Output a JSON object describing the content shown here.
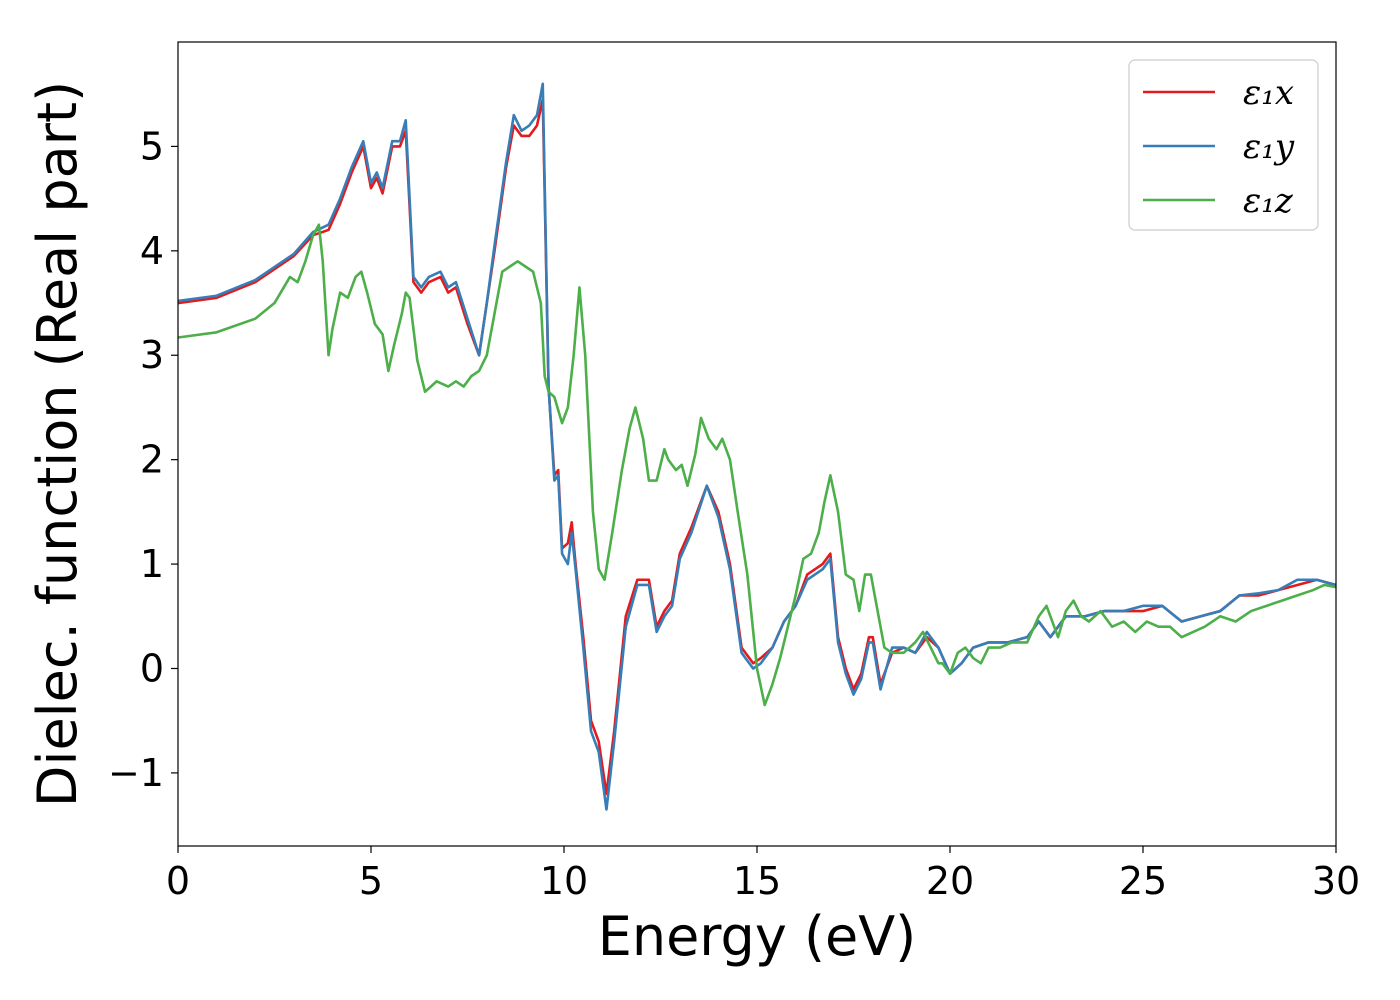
{
  "chart_data": {
    "type": "line",
    "title": "",
    "xlabel": "Energy (eV)",
    "ylabel": "Dielec. function (Real part)",
    "xlim": [
      0,
      30
    ],
    "ylim": [
      -1.7,
      6.0
    ],
    "xticks": [
      0,
      5,
      10,
      15,
      20,
      25,
      30
    ],
    "yticks": [
      -1,
      0,
      1,
      2,
      3,
      4,
      5
    ],
    "xtick_labels": [
      "0",
      "5",
      "10",
      "15",
      "20",
      "25",
      "30"
    ],
    "ytick_labels": [
      "−1",
      "0",
      "1",
      "2",
      "3",
      "4",
      "5"
    ],
    "grid": false,
    "legend_position": "top-right",
    "series": [
      {
        "name": "ε₁x",
        "color": "#e41a1c",
        "x": [
          0,
          1,
          2,
          3,
          3.5,
          3.9,
          4.2,
          4.5,
          4.8,
          5.0,
          5.15,
          5.3,
          5.55,
          5.75,
          5.9,
          6.1,
          6.3,
          6.5,
          6.8,
          7.0,
          7.2,
          7.5,
          7.8,
          8.0,
          8.2,
          8.5,
          8.7,
          8.9,
          9.1,
          9.3,
          9.45,
          9.6,
          9.75,
          9.85,
          9.95,
          10.1,
          10.2,
          10.3,
          10.5,
          10.7,
          10.9,
          11.1,
          11.3,
          11.6,
          11.9,
          12.2,
          12.4,
          12.6,
          12.8,
          13.0,
          13.3,
          13.7,
          14.0,
          14.3,
          14.6,
          14.9,
          15.1,
          15.4,
          15.7,
          16.0,
          16.3,
          16.7,
          16.9,
          17.1,
          17.3,
          17.5,
          17.7,
          17.9,
          18.0,
          18.2,
          18.5,
          18.8,
          19.1,
          19.4,
          19.7,
          20.0,
          20.3,
          20.6,
          21.0,
          21.5,
          22.0,
          22.3,
          22.6,
          23.0,
          23.5,
          24.0,
          24.5,
          25.0,
          25.5,
          26.0,
          26.5,
          27.0,
          27.5,
          28.0,
          28.5,
          29.0,
          29.5,
          30.0
        ],
        "y": [
          3.5,
          3.55,
          3.7,
          3.95,
          4.15,
          4.2,
          4.45,
          4.75,
          5.0,
          4.6,
          4.7,
          4.55,
          5.0,
          5.0,
          5.15,
          3.7,
          3.6,
          3.7,
          3.75,
          3.6,
          3.65,
          3.3,
          3.0,
          3.5,
          4.0,
          4.8,
          5.2,
          5.1,
          5.1,
          5.2,
          5.45,
          2.7,
          1.85,
          1.9,
          1.15,
          1.2,
          1.4,
          1.0,
          0.3,
          -0.5,
          -0.7,
          -1.2,
          -0.6,
          0.5,
          0.85,
          0.85,
          0.4,
          0.55,
          0.65,
          1.1,
          1.35,
          1.75,
          1.5,
          1.0,
          0.2,
          0.05,
          0.1,
          0.2,
          0.45,
          0.6,
          0.9,
          1.0,
          1.1,
          0.3,
          0.0,
          -0.2,
          -0.05,
          0.3,
          0.3,
          -0.15,
          0.15,
          0.2,
          0.15,
          0.3,
          0.2,
          -0.05,
          0.05,
          0.2,
          0.25,
          0.25,
          0.3,
          0.45,
          0.3,
          0.5,
          0.5,
          0.55,
          0.55,
          0.55,
          0.6,
          0.45,
          0.5,
          0.55,
          0.7,
          0.7,
          0.75,
          0.8,
          0.85,
          0.8
        ]
      },
      {
        "name": "ε₁y",
        "color": "#377eb8",
        "x": [
          0,
          1,
          2,
          3,
          3.5,
          3.9,
          4.2,
          4.5,
          4.8,
          5.0,
          5.15,
          5.3,
          5.55,
          5.75,
          5.9,
          6.1,
          6.3,
          6.5,
          6.8,
          7.0,
          7.2,
          7.5,
          7.8,
          8.0,
          8.2,
          8.5,
          8.7,
          8.9,
          9.1,
          9.3,
          9.45,
          9.6,
          9.75,
          9.85,
          9.95,
          10.1,
          10.2,
          10.3,
          10.5,
          10.7,
          10.9,
          11.1,
          11.3,
          11.6,
          11.9,
          12.2,
          12.4,
          12.6,
          12.8,
          13.0,
          13.3,
          13.7,
          14.0,
          14.3,
          14.6,
          14.9,
          15.1,
          15.4,
          15.7,
          16.0,
          16.3,
          16.7,
          16.9,
          17.1,
          17.3,
          17.5,
          17.7,
          17.9,
          18.0,
          18.2,
          18.5,
          18.8,
          19.1,
          19.4,
          19.7,
          20.0,
          20.3,
          20.6,
          21.0,
          21.5,
          22.0,
          22.3,
          22.6,
          23.0,
          23.5,
          24.0,
          24.5,
          25.0,
          25.5,
          26.0,
          26.5,
          27.0,
          27.5,
          28.0,
          28.5,
          29.0,
          29.5,
          30.0
        ],
        "y": [
          3.52,
          3.57,
          3.72,
          3.97,
          4.18,
          4.25,
          4.5,
          4.8,
          5.05,
          4.65,
          4.75,
          4.6,
          5.05,
          5.05,
          5.25,
          3.75,
          3.65,
          3.75,
          3.8,
          3.65,
          3.7,
          3.35,
          3.0,
          3.5,
          4.05,
          4.85,
          5.3,
          5.15,
          5.2,
          5.3,
          5.6,
          2.7,
          1.8,
          1.85,
          1.1,
          1.0,
          1.3,
          0.95,
          0.2,
          -0.6,
          -0.8,
          -1.35,
          -0.7,
          0.4,
          0.8,
          0.8,
          0.35,
          0.5,
          0.6,
          1.05,
          1.3,
          1.75,
          1.45,
          0.95,
          0.15,
          0.0,
          0.05,
          0.2,
          0.45,
          0.6,
          0.85,
          0.95,
          1.05,
          0.25,
          -0.05,
          -0.25,
          -0.1,
          0.25,
          0.25,
          -0.2,
          0.2,
          0.2,
          0.15,
          0.35,
          0.2,
          -0.05,
          0.05,
          0.2,
          0.25,
          0.25,
          0.3,
          0.45,
          0.3,
          0.5,
          0.5,
          0.55,
          0.55,
          0.6,
          0.6,
          0.45,
          0.5,
          0.55,
          0.7,
          0.72,
          0.75,
          0.85,
          0.85,
          0.8
        ]
      },
      {
        "name": "ε₁z",
        "color": "#4daf4a",
        "x": [
          0,
          1,
          2,
          2.5,
          2.9,
          3.1,
          3.3,
          3.5,
          3.65,
          3.75,
          3.9,
          4.0,
          4.2,
          4.4,
          4.6,
          4.75,
          4.9,
          5.1,
          5.3,
          5.45,
          5.6,
          5.8,
          5.9,
          6.0,
          6.2,
          6.4,
          6.7,
          7.0,
          7.2,
          7.4,
          7.6,
          7.8,
          8.0,
          8.2,
          8.4,
          8.6,
          8.8,
          9.0,
          9.2,
          9.4,
          9.5,
          9.6,
          9.75,
          9.95,
          10.1,
          10.25,
          10.4,
          10.55,
          10.75,
          10.9,
          11.05,
          11.25,
          11.5,
          11.7,
          11.85,
          12.05,
          12.2,
          12.4,
          12.6,
          12.7,
          12.9,
          13.05,
          13.2,
          13.4,
          13.55,
          13.75,
          13.95,
          14.1,
          14.3,
          14.5,
          14.75,
          15.0,
          15.2,
          15.4,
          15.6,
          15.8,
          16.0,
          16.2,
          16.4,
          16.6,
          16.75,
          16.9,
          17.1,
          17.3,
          17.5,
          17.65,
          17.8,
          17.95,
          18.1,
          18.3,
          18.5,
          18.8,
          19.1,
          19.3,
          19.5,
          19.7,
          19.8,
          20.0,
          20.2,
          20.4,
          20.6,
          20.8,
          21.0,
          21.3,
          21.6,
          22.0,
          22.3,
          22.5,
          22.8,
          23.0,
          23.2,
          23.4,
          23.6,
          23.9,
          24.2,
          24.5,
          24.8,
          25.1,
          25.4,
          25.7,
          26.0,
          26.3,
          26.6,
          27.0,
          27.4,
          27.8,
          28.2,
          28.6,
          29.0,
          29.4,
          29.7,
          30.0
        ],
        "y": [
          3.17,
          3.22,
          3.35,
          3.5,
          3.75,
          3.7,
          3.9,
          4.15,
          4.25,
          3.9,
          3.0,
          3.25,
          3.6,
          3.55,
          3.75,
          3.8,
          3.6,
          3.3,
          3.2,
          2.85,
          3.1,
          3.4,
          3.6,
          3.55,
          2.95,
          2.65,
          2.75,
          2.7,
          2.75,
          2.7,
          2.8,
          2.85,
          3.0,
          3.4,
          3.8,
          3.85,
          3.9,
          3.85,
          3.8,
          3.5,
          2.8,
          2.65,
          2.6,
          2.35,
          2.5,
          3.0,
          3.65,
          3.0,
          1.5,
          0.95,
          0.85,
          1.3,
          1.9,
          2.3,
          2.5,
          2.2,
          1.8,
          1.8,
          2.1,
          2.0,
          1.9,
          1.95,
          1.75,
          2.05,
          2.4,
          2.2,
          2.1,
          2.2,
          2.0,
          1.5,
          0.9,
          0.0,
          -0.35,
          -0.15,
          0.1,
          0.4,
          0.7,
          1.05,
          1.1,
          1.3,
          1.6,
          1.85,
          1.5,
          0.9,
          0.85,
          0.55,
          0.9,
          0.9,
          0.6,
          0.2,
          0.15,
          0.15,
          0.25,
          0.35,
          0.2,
          0.05,
          0.05,
          -0.05,
          0.15,
          0.2,
          0.1,
          0.05,
          0.2,
          0.2,
          0.25,
          0.25,
          0.5,
          0.6,
          0.3,
          0.55,
          0.65,
          0.5,
          0.45,
          0.55,
          0.4,
          0.45,
          0.35,
          0.45,
          0.4,
          0.4,
          0.3,
          0.35,
          0.4,
          0.5,
          0.45,
          0.55,
          0.6,
          0.65,
          0.7,
          0.75,
          0.8,
          0.78
        ]
      }
    ]
  }
}
